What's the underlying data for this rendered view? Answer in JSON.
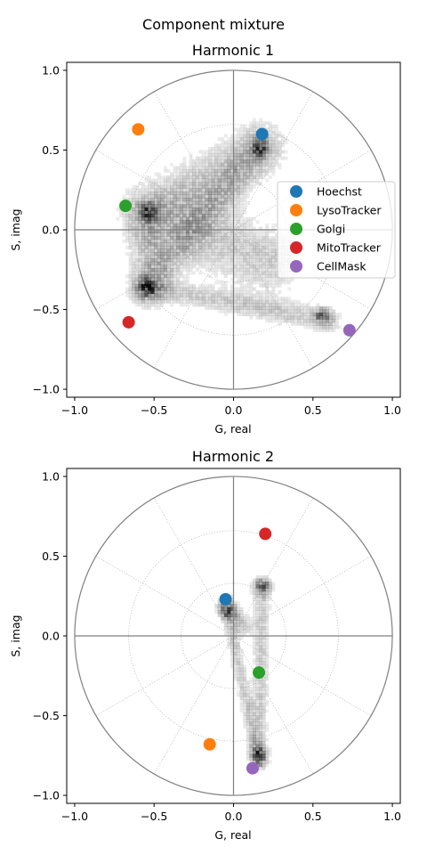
{
  "figure": {
    "title": "Component mixture"
  },
  "chart_data": [
    {
      "type": "scatter",
      "title": "Harmonic 1",
      "xlabel": "G, real",
      "ylabel": "S, imag",
      "xlim": [
        -1.05,
        1.05
      ],
      "ylim": [
        -1.05,
        1.05
      ],
      "xticks": [
        -1.0,
        -0.5,
        0.0,
        0.5,
        1.0
      ],
      "yticks": [
        -1.0,
        -0.5,
        0.0,
        0.5,
        1.0
      ],
      "xtick_labels": [
        "−1.0",
        "−0.5",
        "0.0",
        "0.5",
        "1.0"
      ],
      "ytick_labels": [
        "−1.0",
        "−0.5",
        "0.0",
        "0.5",
        "1.0"
      ],
      "polar_grid": true,
      "legend": "center-right",
      "series": [
        {
          "name": "Hoechst",
          "color": "#1f77b4",
          "x": 0.18,
          "y": 0.6
        },
        {
          "name": "LysoTracker",
          "color": "#ff7f0e",
          "x": -0.6,
          "y": 0.63
        },
        {
          "name": "Golgi",
          "color": "#2ca02c",
          "x": -0.68,
          "y": 0.15
        },
        {
          "name": "MitoTracker",
          "color": "#d62728",
          "x": -0.66,
          "y": -0.58
        },
        {
          "name": "CellMask",
          "color": "#9467bd",
          "x": 0.73,
          "y": -0.63
        }
      ],
      "histogram_hotspots": [
        [
          0.15,
          0.5
        ],
        [
          -0.55,
          -0.37
        ],
        [
          0.55,
          -0.55
        ],
        [
          -0.55,
          0.1
        ]
      ]
    },
    {
      "type": "scatter",
      "title": "Harmonic 2",
      "xlabel": "G, real",
      "ylabel": "S, imag",
      "xlim": [
        -1.05,
        1.05
      ],
      "ylim": [
        -1.05,
        1.05
      ],
      "xticks": [
        -1.0,
        -0.5,
        0.0,
        0.5,
        1.0
      ],
      "yticks": [
        -1.0,
        -0.5,
        0.0,
        0.5,
        1.0
      ],
      "xtick_labels": [
        "−1.0",
        "−0.5",
        "0.0",
        "0.5",
        "1.0"
      ],
      "ytick_labels": [
        "−1.0",
        "−0.5",
        "0.0",
        "0.5",
        "1.0"
      ],
      "polar_grid": true,
      "series": [
        {
          "name": "Hoechst",
          "color": "#1f77b4",
          "x": -0.05,
          "y": 0.23
        },
        {
          "name": "LysoTracker",
          "color": "#ff7f0e",
          "x": -0.15,
          "y": -0.68
        },
        {
          "name": "Golgi",
          "color": "#2ca02c",
          "x": 0.16,
          "y": -0.23
        },
        {
          "name": "MitoTracker",
          "color": "#d62728",
          "x": 0.2,
          "y": 0.64
        },
        {
          "name": "CellMask",
          "color": "#9467bd",
          "x": 0.12,
          "y": -0.83
        }
      ],
      "histogram_hotspots": [
        [
          -0.05,
          0.15
        ],
        [
          0.15,
          -0.75
        ],
        [
          0.17,
          0.3
        ]
      ]
    }
  ]
}
